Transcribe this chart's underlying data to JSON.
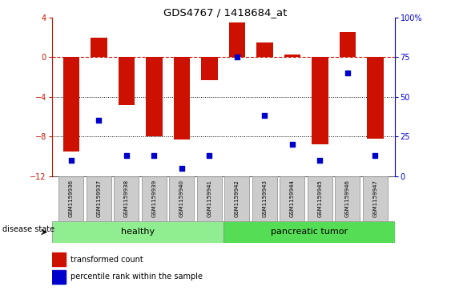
{
  "title": "GDS4767 / 1418684_at",
  "samples": [
    "GSM1159936",
    "GSM1159937",
    "GSM1159938",
    "GSM1159939",
    "GSM1159940",
    "GSM1159941",
    "GSM1159942",
    "GSM1159943",
    "GSM1159944",
    "GSM1159945",
    "GSM1159946",
    "GSM1159947"
  ],
  "transformed_count": [
    -9.5,
    2.0,
    -4.8,
    -8.0,
    -8.3,
    -2.3,
    3.5,
    1.5,
    0.3,
    -8.8,
    2.5,
    -8.2
  ],
  "percentile_rank": [
    10,
    35,
    13,
    13,
    5,
    13,
    75,
    38,
    20,
    10,
    65,
    13
  ],
  "ylim_left": [
    -12,
    4
  ],
  "ylim_right": [
    0,
    100
  ],
  "yticks_left": [
    -12,
    -8,
    -4,
    0,
    4
  ],
  "yticks_right": [
    0,
    25,
    50,
    75,
    100
  ],
  "bar_color": "#cc1100",
  "dot_color": "#0000cc",
  "dotted_lines": [
    -4,
    -8
  ],
  "healthy_count": 6,
  "tumor_count": 6,
  "healthy_color": "#90ee90",
  "tumor_color": "#55dd55",
  "label_healthy": "healthy",
  "label_tumor": "pancreatic tumor",
  "disease_state_label": "disease state",
  "legend_bar_label": "transformed count",
  "legend_dot_label": "percentile rank within the sample",
  "bar_width": 0.6,
  "dot_size": 25
}
